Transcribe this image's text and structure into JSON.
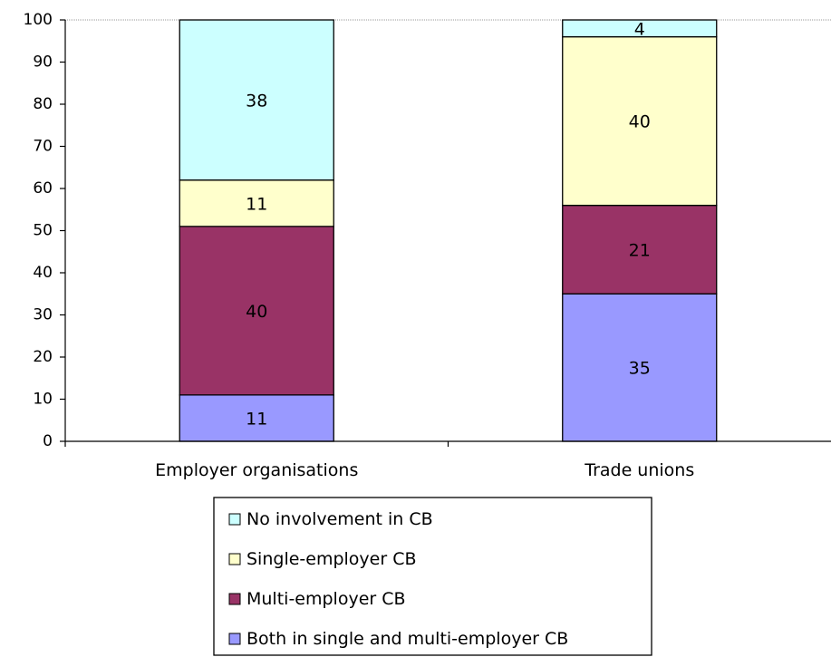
{
  "chart_data": {
    "type": "bar",
    "stacked": true,
    "categories": [
      "Employer organisations",
      "Trade unions"
    ],
    "series": [
      {
        "name": "Both in single and multi-employer CB",
        "values": [
          11,
          35
        ],
        "color": "#9999ff"
      },
      {
        "name": "Multi-employer CB",
        "values": [
          40,
          21
        ],
        "color": "#993366"
      },
      {
        "name": "Single-employer CB",
        "values": [
          11,
          40
        ],
        "color": "#ffffcc"
      },
      {
        "name": "No involvement in CB",
        "values": [
          38,
          4
        ],
        "color": "#ccffff"
      }
    ],
    "data_labels": [
      [
        "11",
        "40",
        "11",
        "38"
      ],
      [
        "35",
        "21",
        "40",
        "4"
      ]
    ],
    "yticks": [
      0,
      10,
      20,
      30,
      40,
      50,
      60,
      70,
      80,
      90,
      100
    ],
    "ylim": [
      0,
      100
    ],
    "title": "",
    "xlabel": "",
    "ylabel": "",
    "grid": false,
    "legend_position": "bottom",
    "legend_order": [
      "No involvement in CB",
      "Single-employer CB",
      "Multi-employer CB",
      "Both in single and multi-employer CB"
    ]
  }
}
